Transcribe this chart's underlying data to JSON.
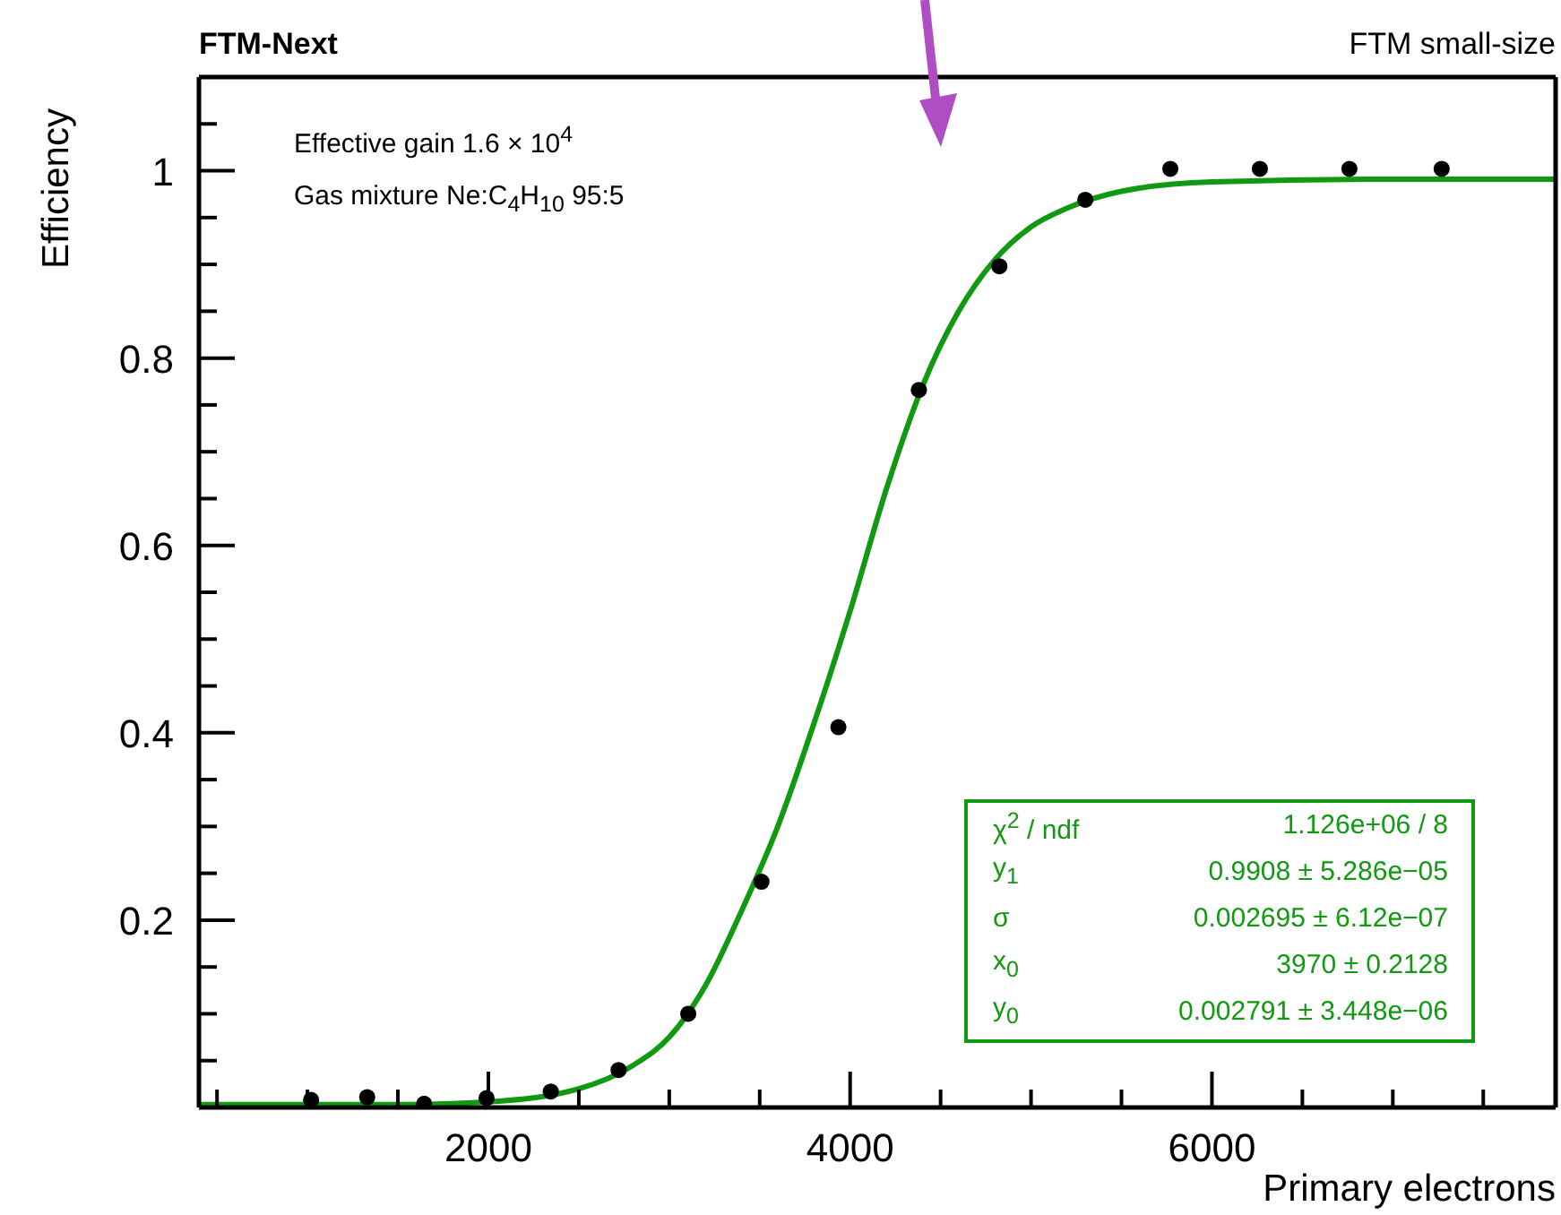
{
  "chart_data": {
    "type": "scatter",
    "title": "FTM-Next",
    "subtitle": "FTM small-size",
    "xlabel": "Primary electrons",
    "ylabel": "Efficiency",
    "annotations": [
      "Effective gain 1.6 × 10$^{4}$",
      "Gas mixture Ne:C$_{4}$H$_{10}$ 95:5",
      "χ$^{2}$ / ndf",
      "1.126e+06 / 8",
      "y$_{1}$",
      "0.9908 ± 5.286e−05",
      "σ",
      "0.002695 ± 6.12e−07",
      "x$_{0}$",
      "3970 ± 0.2128",
      "y$_{0}$",
      "0.002791 ± 3.448e−06"
    ],
    "series": [
      {
        "color": "#000000",
        "marker": "circle",
        "x": [
          1020,
          1330,
          1645,
          1990,
          2345,
          2720,
          3105,
          3510,
          3935,
          4380,
          4825,
          5300,
          5770,
          6265,
          6760,
          7270
        ],
        "values": [
          0.008,
          0.011,
          0.004,
          0.01,
          0.017,
          0.04,
          0.1,
          0.241,
          0.406,
          0.766,
          0.898,
          0.969,
          1.002,
          1.002,
          1.002,
          1.002
        ]
      },
      {
        "type": "line",
        "color": "#119911",
        "marker": "none",
        "line_style": "solid",
        "x": [
          400,
          1500,
          2000,
          2500,
          2800,
          3000,
          3200,
          3400,
          3600,
          3800,
          4000,
          4200,
          4400,
          4600,
          4800,
          5000,
          5200,
          5500,
          6000,
          7000,
          7900
        ],
        "values": [
          0.003,
          0.003,
          0.006,
          0.02,
          0.045,
          0.075,
          0.13,
          0.21,
          0.3,
          0.41,
          0.53,
          0.66,
          0.77,
          0.85,
          0.905,
          0.94,
          0.96,
          0.978,
          0.988,
          0.991,
          0.991
        ]
      }
    ],
    "xlim": [
      400,
      7900
    ],
    "xticks": [
      {
        "value": 500,
        "label": null
      },
      {
        "value": 1000,
        "label": null
      },
      {
        "value": 1500,
        "label": null
      },
      2000,
      {
        "value": 2500,
        "label": null
      },
      {
        "value": 3000,
        "label": null
      },
      {
        "value": 3500,
        "label": null
      },
      4000,
      {
        "value": 4500,
        "label": null
      },
      {
        "value": 5000,
        "label": null
      },
      {
        "value": 5500,
        "label": null
      },
      6000,
      {
        "value": 6500,
        "label": null
      },
      {
        "value": 7000,
        "label": null
      },
      {
        "value": 7500,
        "label": null
      }
    ],
    "ylim": [
      0,
      1.1
    ],
    "yticks": [
      {
        "value": 0.05,
        "label": null
      },
      {
        "value": 0.1,
        "label": null
      },
      {
        "value": 0.15,
        "label": null
      },
      0.2,
      {
        "value": 0.25,
        "label": null
      },
      {
        "value": 0.3,
        "label": null
      },
      {
        "value": 0.35,
        "label": null
      },
      0.4,
      {
        "value": 0.45,
        "label": null
      },
      {
        "value": 0.5,
        "label": null
      },
      {
        "value": 0.55,
        "label": null
      },
      0.6,
      {
        "value": 0.65,
        "label": null
      },
      {
        "value": 0.7,
        "label": null
      },
      {
        "value": 0.75,
        "label": null
      },
      0.8,
      {
        "value": 0.85,
        "label": null
      },
      {
        "value": 0.9,
        "label": null
      },
      {
        "value": 0.95,
        "label": null
      },
      1,
      {
        "value": 1.05,
        "label": null
      }
    ],
    "grid": false
  }
}
